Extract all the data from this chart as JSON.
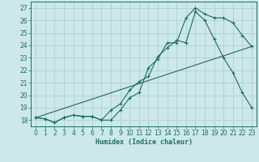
{
  "xlabel": "Humidex (Indice chaleur)",
  "bg_color": "#cce8e8",
  "grid_color": "#aacccc",
  "line_color": "#1a6e5e",
  "xlim": [
    -0.5,
    23.5
  ],
  "ylim": [
    17.5,
    27.5
  ],
  "xticks": [
    0,
    1,
    2,
    3,
    4,
    5,
    6,
    7,
    8,
    9,
    10,
    11,
    12,
    13,
    14,
    15,
    16,
    17,
    18,
    19,
    20,
    21,
    22,
    23
  ],
  "yticks": [
    18,
    19,
    20,
    21,
    22,
    23,
    24,
    25,
    26,
    27
  ],
  "line1_x": [
    0,
    1,
    2,
    3,
    4,
    5,
    6,
    7,
    8,
    9,
    10,
    11,
    12,
    13,
    14,
    15,
    16,
    17,
    18,
    19,
    20,
    21,
    22,
    23
  ],
  "line1_y": [
    18.2,
    18.1,
    17.8,
    18.2,
    18.4,
    18.3,
    18.3,
    18.0,
    18.0,
    18.8,
    19.8,
    20.2,
    22.2,
    22.9,
    24.2,
    24.2,
    26.2,
    27.0,
    26.5,
    26.2,
    26.2,
    25.8,
    24.8,
    23.9
  ],
  "line2_x": [
    0,
    1,
    2,
    3,
    4,
    5,
    6,
    7,
    8,
    9,
    10,
    11,
    12,
    13,
    14,
    15,
    16,
    17,
    18,
    19,
    20,
    21,
    22,
    23
  ],
  "line2_y": [
    18.2,
    18.1,
    17.8,
    18.2,
    18.4,
    18.3,
    18.3,
    18.0,
    18.8,
    19.3,
    20.4,
    21.1,
    21.5,
    23.1,
    23.8,
    24.4,
    24.2,
    26.7,
    26.0,
    24.5,
    23.0,
    21.8,
    20.2,
    19.0
  ],
  "line3_x": [
    0,
    23
  ],
  "line3_y": [
    18.2,
    23.9
  ]
}
